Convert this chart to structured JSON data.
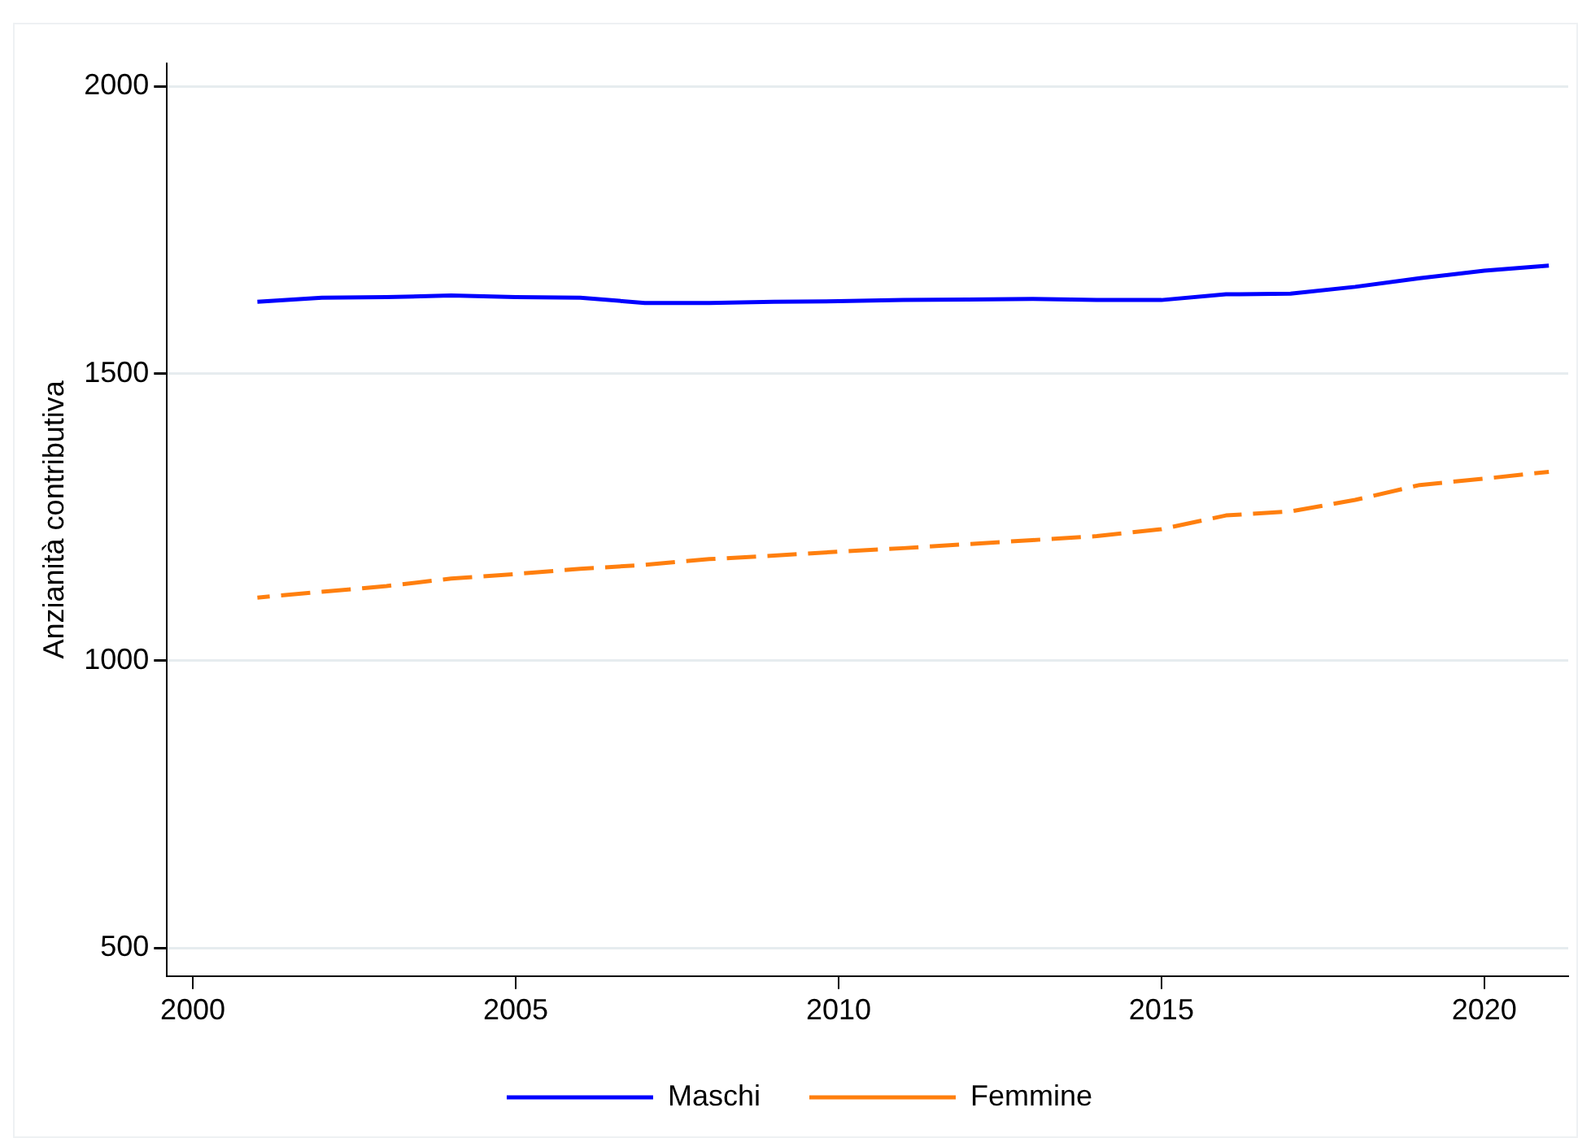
{
  "chart_data": {
    "type": "line",
    "ylabel": "Anzianità contributiva",
    "x": [
      2001,
      2002,
      2003,
      2004,
      2005,
      2006,
      2007,
      2008,
      2009,
      2010,
      2011,
      2012,
      2013,
      2014,
      2015,
      2016,
      2017,
      2018,
      2019,
      2020,
      2021
    ],
    "series": [
      {
        "name": "Maschi",
        "color": "#0000ff",
        "line_style": "solid",
        "values": [
          1625,
          1632,
          1633,
          1636,
          1633,
          1632,
          1623,
          1623,
          1625,
          1626,
          1628,
          1629,
          1630,
          1628,
          1628,
          1638,
          1639,
          1651,
          1666,
          1679,
          1688
        ]
      },
      {
        "name": "Femmine",
        "color": "#ff7f0e",
        "line_style": "dashed",
        "values": [
          1110,
          1120,
          1130,
          1143,
          1151,
          1160,
          1167,
          1177,
          1183,
          1190,
          1196,
          1203,
          1210,
          1217,
          1229,
          1253,
          1260,
          1280,
          1306,
          1317,
          1329
        ]
      }
    ],
    "xlim": [
      1999.6,
      2021.3
    ],
    "xticks": [
      2000,
      2005,
      2010,
      2015,
      2020
    ],
    "ylim": [
      451,
      2040
    ],
    "yticks": [
      500,
      1000,
      1500,
      2000
    ],
    "grid": "y",
    "legend": "bottom",
    "marker": "none"
  }
}
